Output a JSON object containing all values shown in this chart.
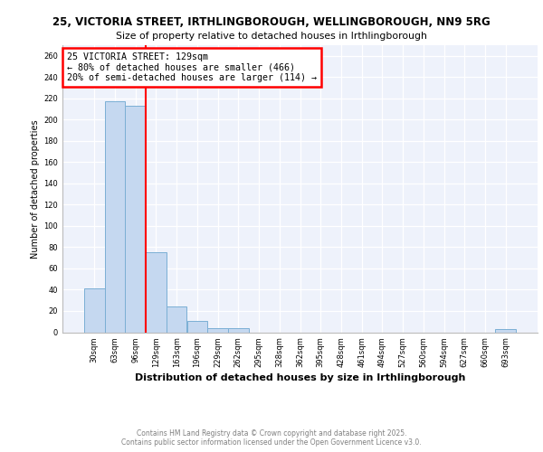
{
  "title1": "25, VICTORIA STREET, IRTHLINGBOROUGH, WELLINGBOROUGH, NN9 5RG",
  "title2": "Size of property relative to detached houses in Irthlingborough",
  "xlabel": "Distribution of detached houses by size in Irthlingborough",
  "ylabel": "Number of detached properties",
  "bar_labels": [
    "30sqm",
    "63sqm",
    "96sqm",
    "129sqm",
    "163sqm",
    "196sqm",
    "229sqm",
    "262sqm",
    "295sqm",
    "328sqm",
    "362sqm",
    "395sqm",
    "428sqm",
    "461sqm",
    "494sqm",
    "527sqm",
    "560sqm",
    "594sqm",
    "627sqm",
    "660sqm",
    "693sqm"
  ],
  "bar_values": [
    41,
    217,
    213,
    75,
    24,
    11,
    4,
    4,
    0,
    0,
    0,
    0,
    0,
    0,
    0,
    0,
    0,
    0,
    0,
    0,
    3
  ],
  "bar_color": "#c5d8f0",
  "bar_edge_color": "#7bafd4",
  "property_line_x": 3,
  "property_line_color": "red",
  "annotation_title": "25 VICTORIA STREET: 129sqm",
  "annotation_line1": "← 80% of detached houses are smaller (466)",
  "annotation_line2": "20% of semi-detached houses are larger (114) →",
  "annotation_box_color": "white",
  "annotation_box_edge": "red",
  "ylim": [
    0,
    270
  ],
  "yticks": [
    0,
    20,
    40,
    60,
    80,
    100,
    120,
    140,
    160,
    180,
    200,
    220,
    240,
    260
  ],
  "bg_color": "#eef2fb",
  "footer1": "Contains HM Land Registry data © Crown copyright and database right 2025.",
  "footer2": "Contains public sector information licensed under the Open Government Licence v3.0."
}
